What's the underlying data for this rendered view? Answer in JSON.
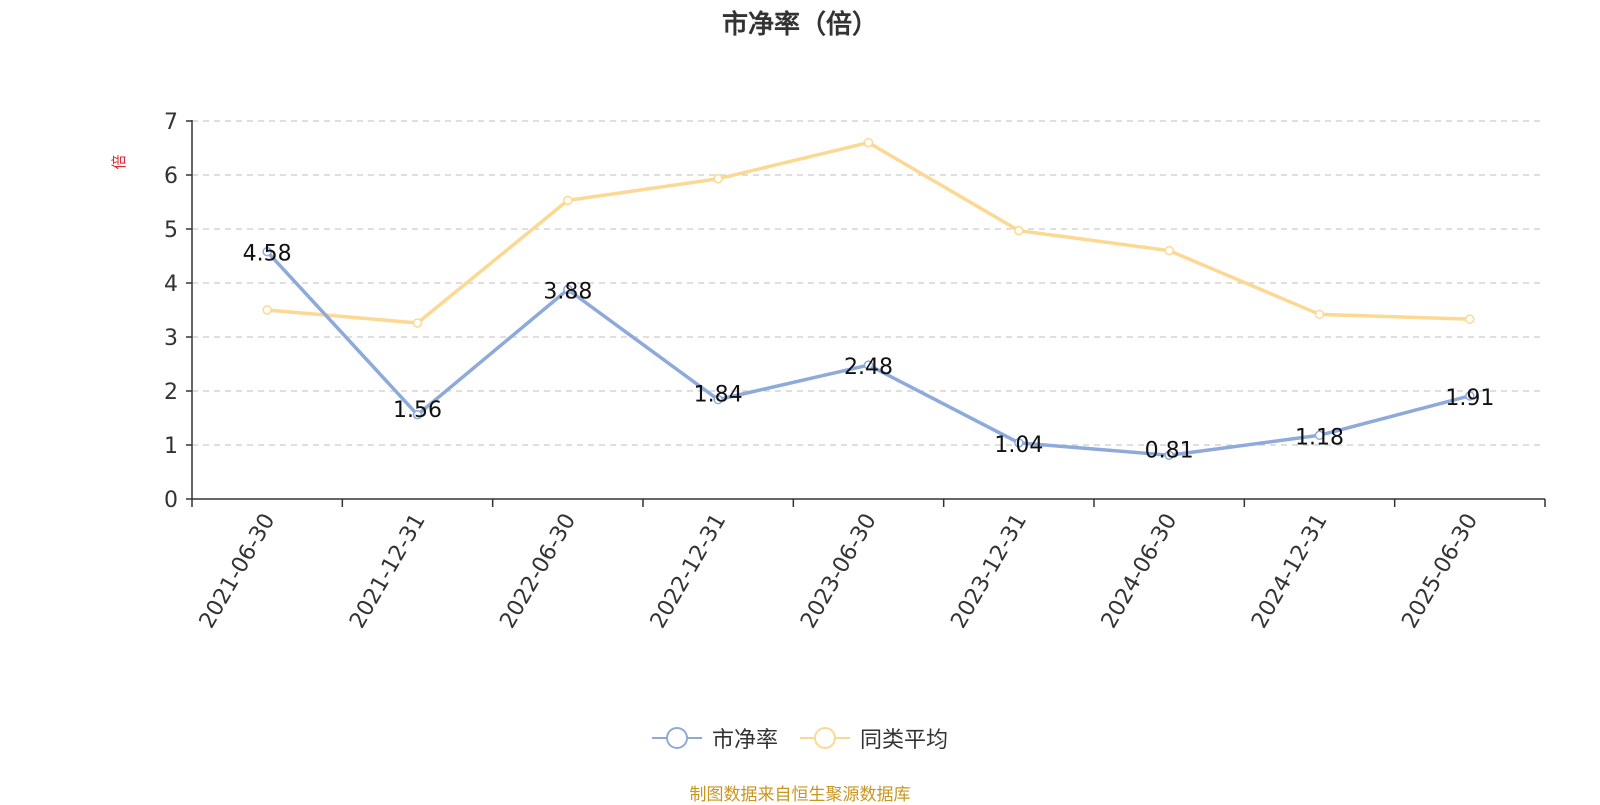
{
  "chart_data": {
    "type": "line",
    "title": "市净率（倍）",
    "ylabel": "倍",
    "xlabel": "",
    "categories": [
      "2021-06-30",
      "2021-12-31",
      "2022-06-30",
      "2022-12-31",
      "2023-06-30",
      "2023-12-31",
      "2024-06-30",
      "2024-12-31",
      "2025-06-30"
    ],
    "ylim": [
      0,
      7
    ],
    "yticks": [
      "0",
      "1",
      "2",
      "3",
      "4",
      "5",
      "6",
      "7"
    ],
    "grid": true,
    "legend_position": "bottom",
    "series": [
      {
        "name": "市净率",
        "color": "#8eaadb",
        "values": [
          4.58,
          1.56,
          3.88,
          1.84,
          2.48,
          1.04,
          0.81,
          1.18,
          1.91
        ],
        "labels": [
          "4.58",
          "1.56",
          "3.88",
          "1.84",
          "2.48",
          "1.04",
          "0.81",
          "1.18",
          "1.91"
        ],
        "show_labels": true
      },
      {
        "name": "同类平均",
        "color": "#fcd992",
        "values": [
          3.5,
          3.26,
          5.53,
          5.93,
          6.6,
          4.97,
          4.6,
          3.42,
          3.33
        ],
        "show_labels": false
      }
    ]
  },
  "footer": {
    "source": "制图数据来自恒生聚源数据库"
  }
}
